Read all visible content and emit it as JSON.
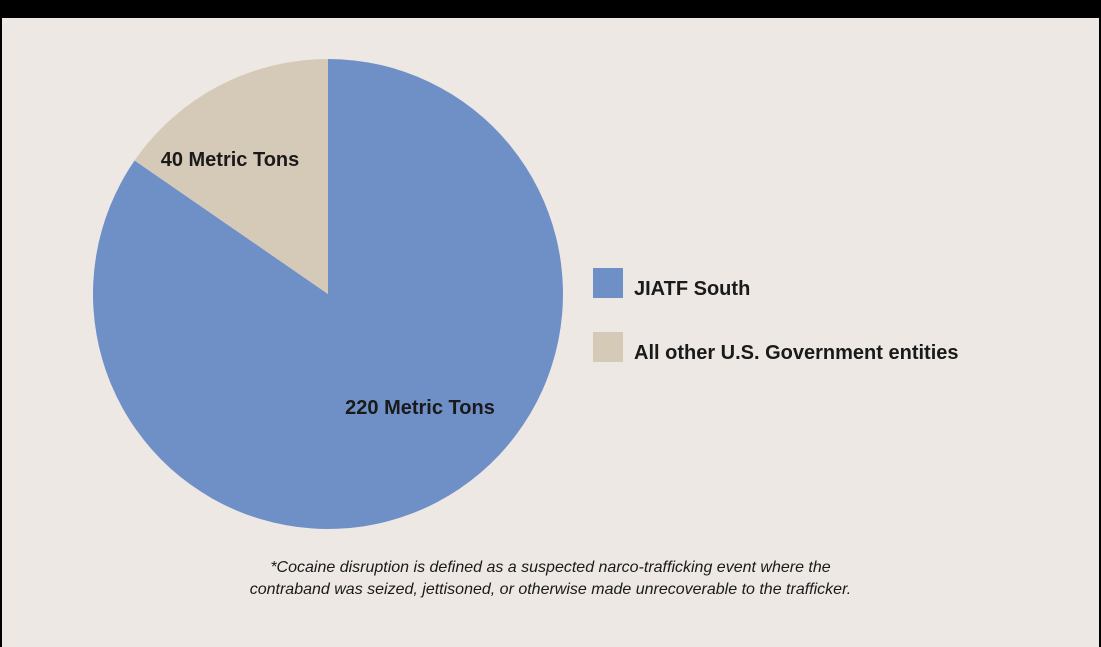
{
  "chart_data": {
    "type": "pie",
    "slices": [
      {
        "name": "JIATF South",
        "value": 220,
        "label": "220 Metric Tons",
        "color": "#6f8fc7"
      },
      {
        "name": "All other U.S. Government entities",
        "value": 40,
        "label": "40 Metric Tons",
        "color": "#d5cab8"
      }
    ],
    "legend": [
      "JIATF South",
      "All other U.S. Government entities"
    ],
    "legend_position": "right"
  },
  "footnote": {
    "line1": "*Cocaine disruption is defined as a suspected narco-trafficking event where the",
    "line2": "contraband was seized, jettisoned, or otherwise made unrecoverable to the trafficker."
  }
}
